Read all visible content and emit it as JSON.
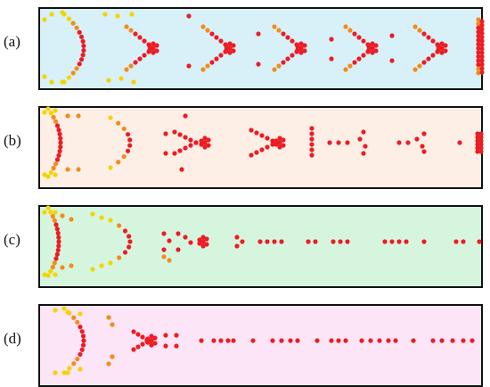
{
  "panels": [
    {
      "label": "(a)",
      "bg": "#d8f0f7"
    },
    {
      "label": "(b)",
      "bg": "#fdeee6"
    },
    {
      "label": "(c)",
      "bg": "#d6f5df"
    },
    {
      "label": "(d)",
      "bg": "#fbe5f6"
    }
  ],
  "colors": {
    "yellow": "#f5d300",
    "orange": "#f28c1c",
    "red": "#ec1c24",
    "border": "#111111"
  }
}
